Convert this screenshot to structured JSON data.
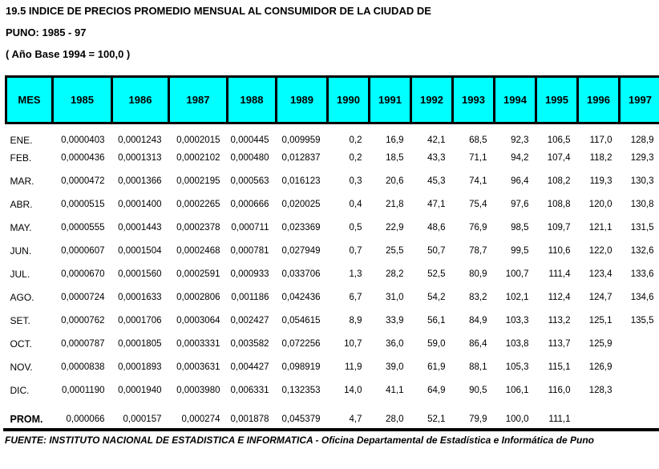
{
  "title": {
    "line1": "19.5 INDICE DE PRECIOS PROMEDIO MENSUAL AL CONSUMIDOR DE LA CIUDAD DE",
    "line2": "PUNO: 1985 - 97",
    "line3": "( Año Base 1994 = 100,0 )"
  },
  "colors": {
    "header_bg": "#00ffff",
    "border": "#000000"
  },
  "table": {
    "month_header": "MES",
    "years": [
      "1985",
      "1986",
      "1987",
      "1988",
      "1989",
      "1990",
      "1991",
      "1992",
      "1993",
      "1994",
      "1995",
      "1996",
      "1997"
    ],
    "rows": [
      {
        "mes": "ENE.",
        "values": [
          "0,0000403",
          "0,0001243",
          "0,0002015",
          "0,000445",
          "0,009959",
          "0,2",
          "16,9",
          "42,1",
          "68,5",
          "92,3",
          "106,5",
          "117,0",
          "128,9"
        ]
      },
      {
        "mes": "FEB.",
        "values": [
          "0,0000436",
          "0,0001313",
          "0,0002102",
          "0,000480",
          "0,012837",
          "0,2",
          "18,5",
          "43,3",
          "71,1",
          "94,2",
          "107,4",
          "118,2",
          "129,3"
        ]
      },
      {
        "mes": "MAR.",
        "values": [
          "0,0000472",
          "0,0001366",
          "0,0002195",
          "0,000563",
          "0,016123",
          "0,3",
          "20,6",
          "45,3",
          "74,1",
          "96,4",
          "108,2",
          "119,3",
          "130,3"
        ]
      },
      {
        "mes": "ABR.",
        "values": [
          "0,0000515",
          "0,0001400",
          "0,0002265",
          "0,000666",
          "0,020025",
          "0,4",
          "21,8",
          "47,1",
          "75,4",
          "97,6",
          "108,8",
          "120,0",
          "130,8"
        ]
      },
      {
        "mes": "MAY.",
        "values": [
          "0,0000555",
          "0,0001443",
          "0,0002378",
          "0,000711",
          "0,023369",
          "0,5",
          "22,9",
          "48,6",
          "76,9",
          "98,5",
          "109,7",
          "121,1",
          "131,5"
        ]
      },
      {
        "mes": "JUN.",
        "values": [
          "0,0000607",
          "0,0001504",
          "0,0002468",
          "0,000781",
          "0,027949",
          "0,7",
          "25,5",
          "50,7",
          "78,7",
          "99,5",
          "110,6",
          "122,0",
          "132,6"
        ]
      },
      {
        "mes": "JUL.",
        "values": [
          "0,0000670",
          "0,0001560",
          "0,0002591",
          "0,000933",
          "0,033706",
          "1,3",
          "28,2",
          "52,5",
          "80,9",
          "100,7",
          "111,4",
          "123,4",
          "133,6"
        ]
      },
      {
        "mes": "AGO.",
        "values": [
          "0,0000724",
          "0,0001633",
          "0,0002806",
          "0,001186",
          "0,042436",
          "6,7",
          "31,0",
          "54,2",
          "83,2",
          "102,1",
          "112,4",
          "124,7",
          "134,6"
        ]
      },
      {
        "mes": "SET.",
        "values": [
          "0,0000762",
          "0,0001706",
          "0,0003064",
          "0,002427",
          "0,054615",
          "8,9",
          "33,9",
          "56,1",
          "84,9",
          "103,3",
          "113,2",
          "125,1",
          "135,5"
        ]
      },
      {
        "mes": "OCT.",
        "values": [
          "0,0000787",
          "0,0001805",
          "0,0003331",
          "0,003582",
          "0,072256",
          "10,7",
          "36,0",
          "59,0",
          "86,4",
          "103,8",
          "113,7",
          "125,9",
          ""
        ]
      },
      {
        "mes": "NOV.",
        "values": [
          "0,0000838",
          "0,0001893",
          "0,0003631",
          "0,004427",
          "0,098919",
          "11,9",
          "39,0",
          "61,9",
          "88,1",
          "105,3",
          "115,1",
          "126,9",
          ""
        ]
      },
      {
        "mes": "DIC.",
        "values": [
          "0,0001190",
          "0,0001940",
          "0,0003980",
          "0,006331",
          "0,132353",
          "14,0",
          "41,1",
          "64,9",
          "90,5",
          "106,1",
          "116,0",
          "128,3",
          ""
        ]
      }
    ],
    "prom": {
      "mes": "PROM.",
      "values": [
        "0,000066",
        "0,000157",
        "0,000274",
        "0,001878",
        "0,045379",
        "4,7",
        "28,0",
        "52,1",
        "79,9",
        "100,0",
        "111,1",
        "",
        ""
      ]
    }
  },
  "footer": {
    "text": "FUENTE: INSTITUTO NACIONAL DE ESTADISTICA E INFORMATICA - Oficina Departamental de Estadística e Informática de Puno"
  }
}
